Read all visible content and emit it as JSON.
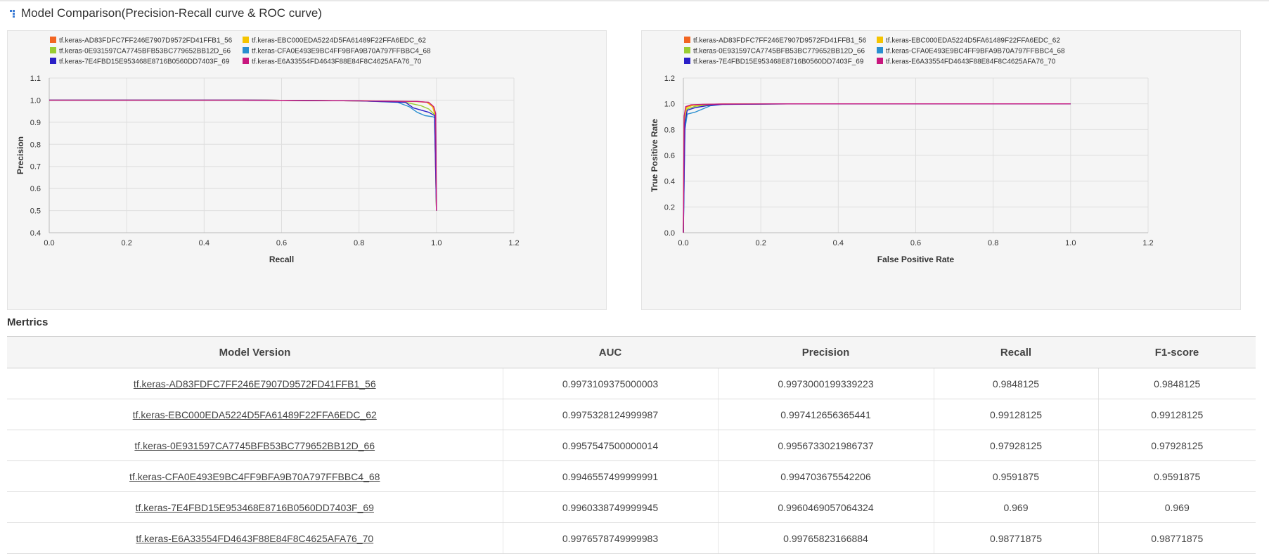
{
  "header": {
    "title": "Model Comparison(Precision-Recall curve & ROC curve)",
    "icon": "chart-icon"
  },
  "colors": [
    "#f26522",
    "#f5c400",
    "#9acd32",
    "#2a8fd0",
    "#2a1fc7",
    "#c8177e"
  ],
  "chart_data": [
    {
      "type": "line",
      "xlabel": "Recall",
      "ylabel": "Precision",
      "xlim": [
        0.0,
        1.2
      ],
      "ylim": [
        0.4,
        1.1
      ],
      "xticks": [
        "0.0",
        "0.2",
        "0.4",
        "0.6",
        "0.8",
        "1.0",
        "1.2"
      ],
      "yticks": [
        "0.4",
        "0.5",
        "0.6",
        "0.7",
        "0.8",
        "0.9",
        "1.0",
        "1.1"
      ],
      "grid": true,
      "legend": "top-left",
      "series": [
        {
          "name": "tf.keras-AD83FDFC7FF246E7907D9572FD41FFB1_56",
          "points": [
            [
              0,
              1.0
            ],
            [
              0.5,
              1.0
            ],
            [
              0.8,
              0.997
            ],
            [
              0.95,
              0.994
            ],
            [
              0.98,
              0.99
            ],
            [
              0.99,
              0.975
            ],
            [
              0.995,
              0.94
            ],
            [
              1.0,
              0.5
            ]
          ]
        },
        {
          "name": "tf.keras-EBC000EDA5224D5FA61489F22FFA6EDC_62",
          "points": [
            [
              0,
              1.0
            ],
            [
              0.5,
              1.0
            ],
            [
              0.8,
              0.997
            ],
            [
              0.95,
              0.993
            ],
            [
              0.975,
              0.99
            ],
            [
              0.99,
              0.97
            ],
            [
              0.996,
              0.935
            ],
            [
              1.0,
              0.5
            ]
          ]
        },
        {
          "name": "tf.keras-0E931597CA7745BFB53BC779652BB12D_66",
          "points": [
            [
              0,
              1.0
            ],
            [
              0.5,
              1.0
            ],
            [
              0.8,
              0.997
            ],
            [
              0.92,
              0.99
            ],
            [
              0.96,
              0.975
            ],
            [
              0.98,
              0.96
            ],
            [
              0.995,
              0.935
            ],
            [
              1.0,
              0.5
            ]
          ]
        },
        {
          "name": "tf.keras-CFA0E493E9BC4FF9BFA9B70A797FFBBC4_68",
          "points": [
            [
              0,
              1.0
            ],
            [
              0.5,
              1.0
            ],
            [
              0.8,
              0.997
            ],
            [
              0.9,
              0.99
            ],
            [
              0.93,
              0.97
            ],
            [
              0.95,
              0.945
            ],
            [
              0.97,
              0.93
            ],
            [
              0.99,
              0.925
            ],
            [
              0.998,
              0.92
            ],
            [
              1.0,
              0.5
            ]
          ]
        },
        {
          "name": "tf.keras-7E4FBD15E953468E8716B0560DD7403F_69",
          "points": [
            [
              0,
              1.0
            ],
            [
              0.5,
              1.0
            ],
            [
              0.8,
              0.997
            ],
            [
              0.92,
              0.99
            ],
            [
              0.94,
              0.965
            ],
            [
              0.96,
              0.955
            ],
            [
              0.98,
              0.945
            ],
            [
              0.995,
              0.93
            ],
            [
              1.0,
              0.5
            ]
          ]
        },
        {
          "name": "tf.keras-E6A33554FD4643F88E84F8C4625AFA76_70",
          "points": [
            [
              0,
              1.0
            ],
            [
              0.5,
              1.0
            ],
            [
              0.8,
              0.997
            ],
            [
              0.95,
              0.994
            ],
            [
              0.98,
              0.99
            ],
            [
              0.993,
              0.97
            ],
            [
              0.998,
              0.94
            ],
            [
              1.0,
              0.5
            ]
          ]
        }
      ]
    },
    {
      "type": "line",
      "xlabel": "False Positive Rate",
      "ylabel": "True Positive Rate",
      "xlim": [
        0.0,
        1.2
      ],
      "ylim": [
        0.0,
        1.2
      ],
      "xticks": [
        "0.0",
        "0.2",
        "0.4",
        "0.6",
        "0.8",
        "1.0",
        "1.2"
      ],
      "yticks": [
        "0.0",
        "0.2",
        "0.4",
        "0.6",
        "0.8",
        "1.0",
        "1.2"
      ],
      "grid": true,
      "legend": "top-left",
      "series": [
        {
          "name": "tf.keras-AD83FDFC7FF246E7907D9572FD41FFB1_56",
          "points": [
            [
              0,
              0
            ],
            [
              0.002,
              0.9
            ],
            [
              0.006,
              0.975
            ],
            [
              0.02,
              0.99
            ],
            [
              0.05,
              0.995
            ],
            [
              0.1,
              0.998
            ],
            [
              0.3,
              1.0
            ],
            [
              1.0,
              1.0
            ]
          ]
        },
        {
          "name": "tf.keras-EBC000EDA5224D5FA61489F22FFA6EDC_62",
          "points": [
            [
              0,
              0
            ],
            [
              0.002,
              0.88
            ],
            [
              0.008,
              0.97
            ],
            [
              0.025,
              0.988
            ],
            [
              0.06,
              0.995
            ],
            [
              0.1,
              0.998
            ],
            [
              0.3,
              1.0
            ],
            [
              1.0,
              1.0
            ]
          ]
        },
        {
          "name": "tf.keras-0E931597CA7745BFB53BC779652BB12D_66",
          "points": [
            [
              0,
              0
            ],
            [
              0.003,
              0.85
            ],
            [
              0.01,
              0.96
            ],
            [
              0.03,
              0.98
            ],
            [
              0.07,
              0.993
            ],
            [
              0.1,
              0.997
            ],
            [
              0.3,
              1.0
            ],
            [
              1.0,
              1.0
            ]
          ]
        },
        {
          "name": "tf.keras-CFA0E493E9BC4FF9BFA9B70A797FFBBC4_68",
          "points": [
            [
              0,
              0
            ],
            [
              0.004,
              0.8
            ],
            [
              0.01,
              0.92
            ],
            [
              0.03,
              0.935
            ],
            [
              0.05,
              0.96
            ],
            [
              0.07,
              0.985
            ],
            [
              0.1,
              0.995
            ],
            [
              0.3,
              1.0
            ],
            [
              1.0,
              1.0
            ]
          ]
        },
        {
          "name": "tf.keras-7E4FBD15E953468E8716B0560DD7403F_69",
          "points": [
            [
              0,
              0
            ],
            [
              0.004,
              0.85
            ],
            [
              0.01,
              0.95
            ],
            [
              0.03,
              0.97
            ],
            [
              0.06,
              0.985
            ],
            [
              0.1,
              0.996
            ],
            [
              0.3,
              1.0
            ],
            [
              1.0,
              1.0
            ]
          ]
        },
        {
          "name": "tf.keras-E6A33554FD4643F88E84F8C4625AFA76_70",
          "points": [
            [
              0,
              0
            ],
            [
              0.002,
              0.9
            ],
            [
              0.006,
              0.978
            ],
            [
              0.02,
              0.992
            ],
            [
              0.05,
              0.996
            ],
            [
              0.1,
              0.998
            ],
            [
              0.3,
              1.0
            ],
            [
              1.0,
              1.0
            ]
          ]
        }
      ]
    }
  ],
  "metrics": {
    "title": "Mertrics",
    "columns": [
      "Model Version",
      "AUC",
      "Precision",
      "Recall",
      "F1-score"
    ],
    "rows": [
      [
        "tf.keras-AD83FDFC7FF246E7907D9572FD41FFB1_56",
        "0.9973109375000003",
        "0.9973000199339223",
        "0.9848125",
        "0.9848125"
      ],
      [
        "tf.keras-EBC000EDA5224D5FA61489F22FFA6EDC_62",
        "0.9975328124999987",
        "0.997412656365441",
        "0.99128125",
        "0.99128125"
      ],
      [
        "tf.keras-0E931597CA7745BFB53BC779652BB12D_66",
        "0.9957547500000014",
        "0.9956733021986737",
        "0.97928125",
        "0.97928125"
      ],
      [
        "tf.keras-CFA0E493E9BC4FF9BFA9B70A797FFBBC4_68",
        "0.9946557499999991",
        "0.994703675542206",
        "0.9591875",
        "0.9591875"
      ],
      [
        "tf.keras-7E4FBD15E953468E8716B0560DD7403F_69",
        "0.9960338749999945",
        "0.9960469057064324",
        "0.969",
        "0.969"
      ],
      [
        "tf.keras-E6A33554FD4643F88E84F8C4625AFA76_70",
        "0.9976578749999983",
        "0.99765823166884",
        "0.98771875",
        "0.98771875"
      ]
    ]
  }
}
